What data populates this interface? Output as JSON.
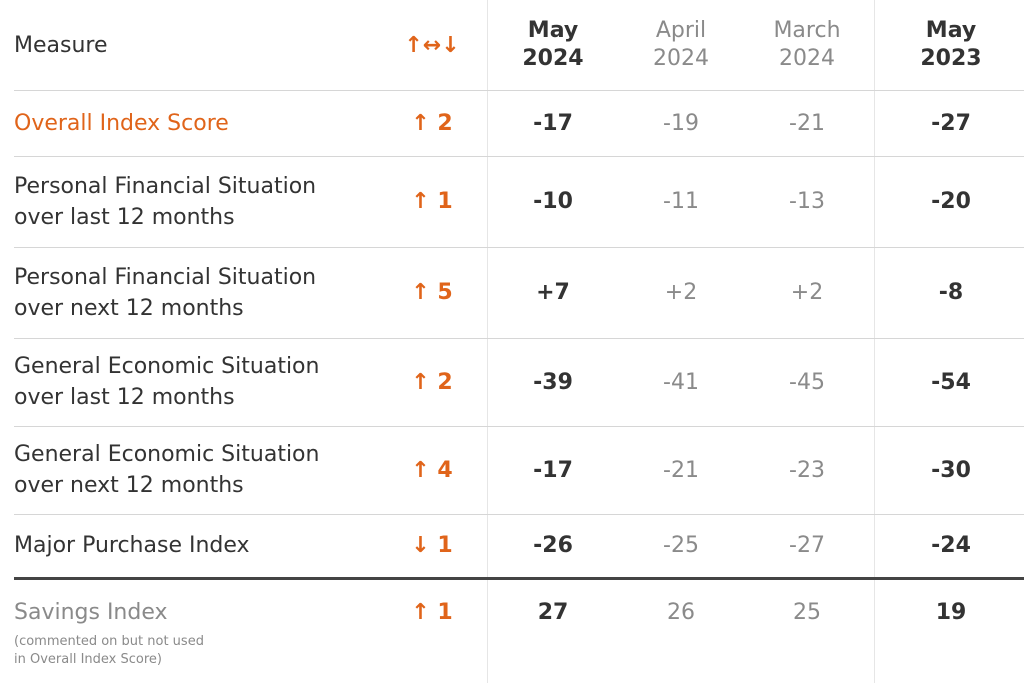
{
  "header": {
    "measure": "Measure",
    "change": "↑↔↓",
    "columns": [
      [
        "May",
        "2024"
      ],
      [
        "April",
        "2024"
      ],
      [
        "March",
        "2024"
      ],
      [
        "May",
        "2023"
      ]
    ]
  },
  "rows": [
    {
      "label": [
        "Overall Index Score"
      ],
      "change": "↑ 2",
      "values": [
        "-17",
        "-19",
        "-21",
        "-27"
      ]
    },
    {
      "label": [
        "Personal Financial Situation",
        "over last 12 months"
      ],
      "change": "↑ 1",
      "values": [
        "-10",
        "-11",
        "-13",
        "-20"
      ]
    },
    {
      "label": [
        "Personal Financial Situation",
        "over next 12 months"
      ],
      "change": "↑ 5",
      "values": [
        "+7",
        "+2",
        "+2",
        "-8"
      ]
    },
    {
      "label": [
        "General Economic Situation",
        "over last 12 months"
      ],
      "change": "↑ 2",
      "values": [
        "-39",
        "-41",
        "-45",
        "-54"
      ]
    },
    {
      "label": [
        "General Economic Situation",
        "over next 12 months"
      ],
      "change": "↑ 4",
      "values": [
        "-17",
        "-21",
        "-23",
        "-30"
      ]
    },
    {
      "label": [
        "Major Purchase Index"
      ],
      "change": "↓ 1",
      "values": [
        "-26",
        "-25",
        "-27",
        "-24"
      ]
    },
    {
      "label": [
        "Savings Index"
      ],
      "change": "↑ 1",
      "values": [
        "27",
        "26",
        "25",
        "19"
      ],
      "note": "(commented on but not used in Overall Index Score)"
    }
  ]
}
